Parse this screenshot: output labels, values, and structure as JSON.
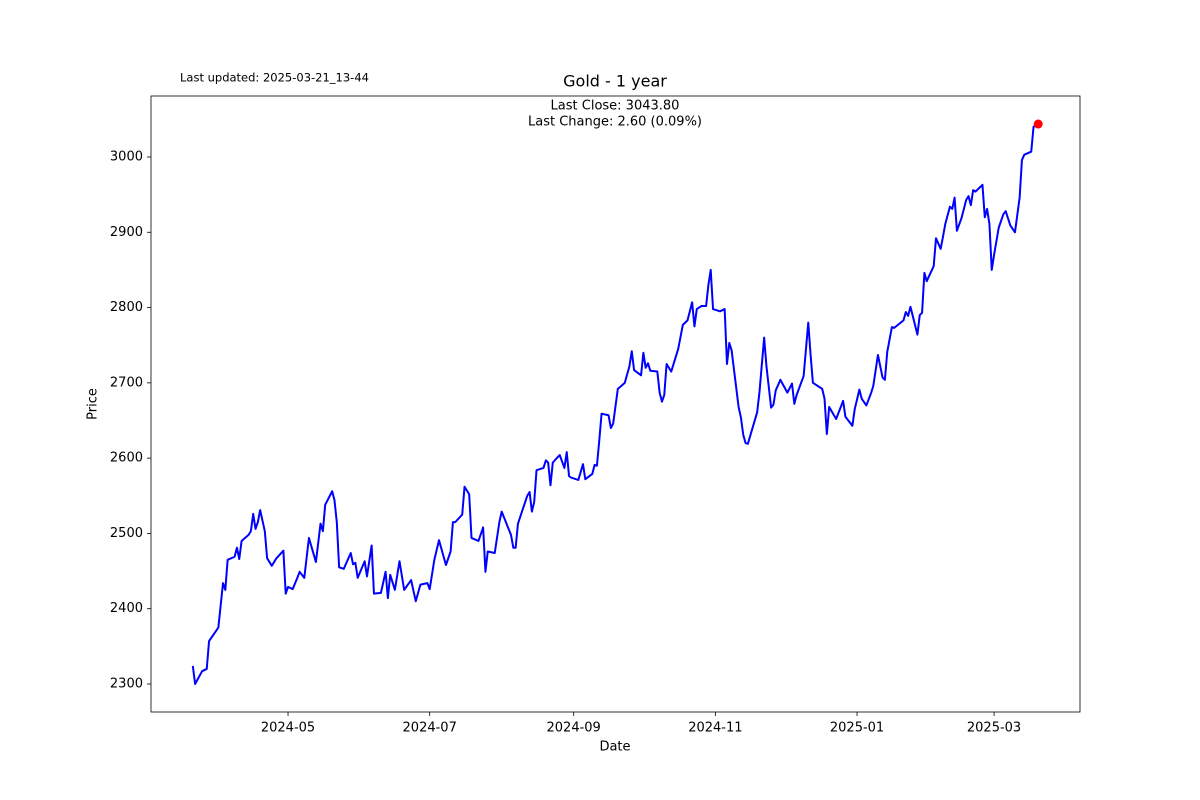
{
  "chart_data": {
    "type": "line",
    "title": "Gold - 1 year",
    "updated": "Last updated: 2025-03-21_13-44",
    "annotations": [
      "Last Close: 3043.80",
      "Last Change: 2.60 (0.09%)"
    ],
    "x_label": "Date",
    "y_label": "Price",
    "color": "#0000ff",
    "marker_color": "#ff0000",
    "grid": false,
    "xlim": [
      "2024-03-03",
      "2025-04-07"
    ],
    "xticks": [
      "2024-05",
      "2024-07",
      "2024-09",
      "2024-11",
      "2025-01",
      "2025-03"
    ],
    "ylim": [
      2262.8,
      3081
    ],
    "yticks": [
      2300,
      2400,
      2500,
      2600,
      2700,
      2800,
      2900,
      3000
    ],
    "x": [
      "2024-03-21",
      "2024-03-22",
      "2024-03-25",
      "2024-03-27",
      "2024-03-28",
      "2024-04-01",
      "2024-04-03",
      "2024-04-04",
      "2024-04-05",
      "2024-04-08",
      "2024-04-09",
      "2024-04-10",
      "2024-04-11",
      "2024-04-14",
      "2024-04-15",
      "2024-04-16",
      "2024-04-17",
      "2024-04-18",
      "2024-04-19",
      "2024-04-21",
      "2024-04-22",
      "2024-04-24",
      "2024-04-26",
      "2024-04-29",
      "2024-04-30",
      "2024-05-01",
      "2024-05-03",
      "2024-05-05",
      "2024-05-06",
      "2024-05-08",
      "2024-05-10",
      "2024-05-13",
      "2024-05-15",
      "2024-05-16",
      "2024-05-17",
      "2024-05-20",
      "2024-05-21",
      "2024-05-22",
      "2024-05-23",
      "2024-05-25",
      "2024-05-28",
      "2024-05-29",
      "2024-05-30",
      "2024-05-31",
      "2024-06-03",
      "2024-06-04",
      "2024-06-06",
      "2024-06-07",
      "2024-06-10",
      "2024-06-12",
      "2024-06-13",
      "2024-06-14",
      "2024-06-16",
      "2024-06-18",
      "2024-06-20",
      "2024-06-23",
      "2024-06-25",
      "2024-06-27",
      "2024-06-30",
      "2024-07-01",
      "2024-07-03",
      "2024-07-05",
      "2024-07-08",
      "2024-07-09",
      "2024-07-10",
      "2024-07-11",
      "2024-07-12",
      "2024-07-15",
      "2024-07-16",
      "2024-07-18",
      "2024-07-19",
      "2024-07-22",
      "2024-07-24",
      "2024-07-25",
      "2024-07-26",
      "2024-07-29",
      "2024-07-31",
      "2024-08-01",
      "2024-08-05",
      "2024-08-06",
      "2024-08-07",
      "2024-08-08",
      "2024-08-12",
      "2024-08-13",
      "2024-08-14",
      "2024-08-15",
      "2024-08-16",
      "2024-08-19",
      "2024-08-20",
      "2024-08-21",
      "2024-08-22",
      "2024-08-23",
      "2024-08-25",
      "2024-08-26",
      "2024-08-28",
      "2024-08-29",
      "2024-08-30",
      "2024-08-31",
      "2024-09-03",
      "2024-09-05",
      "2024-09-06",
      "2024-09-09",
      "2024-09-10",
      "2024-09-11",
      "2024-09-12",
      "2024-09-13",
      "2024-09-16",
      "2024-09-17",
      "2024-09-18",
      "2024-09-20",
      "2024-09-23",
      "2024-09-25",
      "2024-09-26",
      "2024-09-27",
      "2024-09-30",
      "2024-10-01",
      "2024-10-02",
      "2024-10-03",
      "2024-10-04",
      "2024-10-07",
      "2024-10-08",
      "2024-10-09",
      "2024-10-10",
      "2024-10-11",
      "2024-10-13",
      "2024-10-16",
      "2024-10-18",
      "2024-10-20",
      "2024-10-22",
      "2024-10-23",
      "2024-10-24",
      "2024-10-26",
      "2024-10-28",
      "2024-10-29",
      "2024-10-30",
      "2024-10-31",
      "2024-11-03",
      "2024-11-05",
      "2024-11-06",
      "2024-11-07",
      "2024-11-08",
      "2024-11-11",
      "2024-11-12",
      "2024-11-13",
      "2024-11-14",
      "2024-11-15",
      "2024-11-19",
      "2024-11-20",
      "2024-11-22",
      "2024-11-23",
      "2024-11-25",
      "2024-11-26",
      "2024-11-27",
      "2024-11-29",
      "2024-12-02",
      "2024-12-04",
      "2024-12-05",
      "2024-12-06",
      "2024-12-09",
      "2024-12-11",
      "2024-12-12",
      "2024-12-13",
      "2024-12-17",
      "2024-12-18",
      "2024-12-19",
      "2024-12-20",
      "2024-12-23",
      "2024-12-26",
      "2024-12-27",
      "2024-12-30",
      "2024-12-31",
      "2025-01-02",
      "2025-01-03",
      "2025-01-05",
      "2025-01-07",
      "2025-01-08",
      "2025-01-10",
      "2025-01-12",
      "2025-01-13",
      "2025-01-14",
      "2025-01-16",
      "2025-01-17",
      "2025-01-21",
      "2025-01-22",
      "2025-01-23",
      "2025-01-24",
      "2025-01-27",
      "2025-01-28",
      "2025-01-29",
      "2025-01-30",
      "2025-01-31",
      "2025-02-03",
      "2025-02-04",
      "2025-02-06",
      "2025-02-07",
      "2025-02-08",
      "2025-02-10",
      "2025-02-11",
      "2025-02-12",
      "2025-02-13",
      "2025-02-15",
      "2025-02-17",
      "2025-02-18",
      "2025-02-19",
      "2025-02-20",
      "2025-02-21",
      "2025-02-24",
      "2025-02-25",
      "2025-02-26",
      "2025-02-27",
      "2025-02-28",
      "2025-03-01",
      "2025-03-03",
      "2025-03-05",
      "2025-03-06",
      "2025-03-08",
      "2025-03-10",
      "2025-03-12",
      "2025-03-13",
      "2025-03-14",
      "2025-03-17",
      "2025-03-18",
      "2025-03-20"
    ],
    "values": [
      2324,
      2300,
      2317,
      2320,
      2357,
      2375,
      2434,
      2425,
      2465,
      2469,
      2481,
      2466,
      2490,
      2498,
      2503,
      2526,
      2506,
      2515,
      2531,
      2503,
      2467,
      2457,
      2467,
      2477,
      2420,
      2429,
      2426,
      2441,
      2449,
      2441,
      2494,
      2462,
      2513,
      2503,
      2538,
      2556,
      2544,
      2515,
      2455,
      2453,
      2474,
      2459,
      2461,
      2441,
      2463,
      2443,
      2484,
      2420,
      2421,
      2449,
      2414,
      2445,
      2425,
      2463,
      2425,
      2438,
      2410,
      2432,
      2434,
      2426,
      2465,
      2491,
      2458,
      2467,
      2476,
      2515,
      2515,
      2525,
      2562,
      2552,
      2494,
      2490,
      2508,
      2449,
      2476,
      2474,
      2515,
      2529,
      2498,
      2481,
      2481,
      2513,
      2550,
      2555,
      2529,
      2542,
      2584,
      2587,
      2597,
      2594,
      2564,
      2594,
      2601,
      2604,
      2587,
      2608,
      2576,
      2574,
      2571,
      2592,
      2572,
      2579,
      2591,
      2590,
      2623,
      2659,
      2657,
      2640,
      2646,
      2692,
      2700,
      2722,
      2742,
      2717,
      2710,
      2740,
      2720,
      2726,
      2716,
      2715,
      2687,
      2675,
      2684,
      2725,
      2715,
      2745,
      2777,
      2783,
      2807,
      2775,
      2798,
      2802,
      2802,
      2830,
      2850,
      2798,
      2795,
      2798,
      2725,
      2753,
      2743,
      2668,
      2654,
      2631,
      2620,
      2619,
      2661,
      2688,
      2760,
      2722,
      2667,
      2671,
      2690,
      2704,
      2687,
      2699,
      2672,
      2684,
      2709,
      2780,
      2737,
      2700,
      2692,
      2679,
      2632,
      2668,
      2652,
      2676,
      2655,
      2643,
      2665,
      2691,
      2679,
      2670,
      2686,
      2696,
      2737,
      2707,
      2704,
      2741,
      2774,
      2773,
      2783,
      2794,
      2789,
      2801,
      2764,
      2790,
      2793,
      2846,
      2835,
      2855,
      2892,
      2878,
      2894,
      2911,
      2934,
      2931,
      2946,
      2902,
      2919,
      2943,
      2948,
      2936,
      2956,
      2954,
      2963,
      2920,
      2931,
      2911,
      2850,
      2870,
      2906,
      2924,
      2928,
      2909,
      2900,
      2946,
      2996,
      3003,
      3007,
      3040,
      3043.8
    ]
  }
}
